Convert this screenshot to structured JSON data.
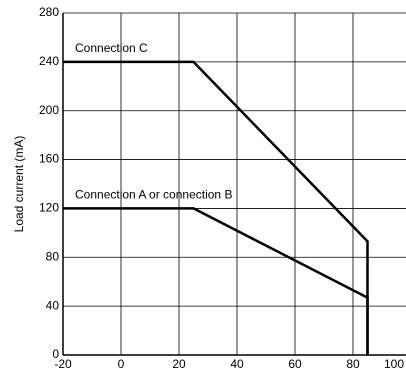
{
  "chart_data": {
    "type": "line",
    "y_label": "Load current (mA)",
    "x": [
      -20,
      25,
      85,
      85
    ],
    "series": [
      {
        "name": "Connection C",
        "color": "#000000",
        "values": [
          240,
          240,
          93,
          0
        ]
      },
      {
        "name": "Connection A or connection B",
        "color": "#000000",
        "values": [
          120,
          120,
          47,
          0
        ]
      }
    ],
    "xlim": [
      -20,
      100
    ],
    "xticks": [
      -20,
      0,
      20,
      40,
      60,
      80,
      100
    ],
    "ylim": [
      0,
      280
    ],
    "yticks": [
      0,
      40,
      80,
      120,
      160,
      200,
      240,
      280
    ],
    "grid": true
  }
}
